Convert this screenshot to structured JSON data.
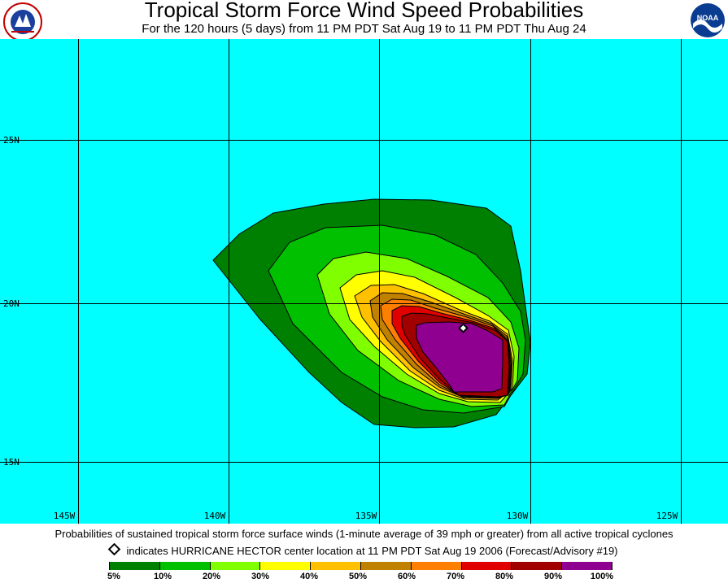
{
  "header": {
    "title": "Tropical Storm Force Wind Speed Probabilities",
    "subtitle": "For the 120 hours (5 days) from 11 PM PDT Sat Aug 19 to 11 PM PDT Thu Aug 24",
    "left_logo_text": "NATIONAL WEATHER SERVICE",
    "right_logo_text": "NOAA"
  },
  "map": {
    "background_color": "#00ffff",
    "grid_color": "#000000",
    "longitudes": [
      "145W",
      "140W",
      "135W",
      "130W",
      "125W"
    ],
    "latitudes": [
      "25N",
      "20N",
      "15N"
    ],
    "storm_marker": "center-diamond"
  },
  "footer": {
    "caption": "Probabilities of sustained tropical storm force surface winds (1-minute average of 39 mph or greater) from all active tropical cyclones",
    "marker_note": "indicates HURRICANE HECTOR center location at 11 PM PDT Sat Aug 19 2006 (Forecast/Advisory #19)",
    "legend_labels": [
      "5%",
      "10%",
      "20%",
      "30%",
      "40%",
      "50%",
      "60%",
      "70%",
      "80%",
      "90%",
      "100%"
    ],
    "legend_colors": [
      "#008000",
      "#00c000",
      "#80ff00",
      "#ffff00",
      "#ffc000",
      "#c08000",
      "#ff8000",
      "#e00000",
      "#a00000",
      "#900090"
    ]
  }
}
